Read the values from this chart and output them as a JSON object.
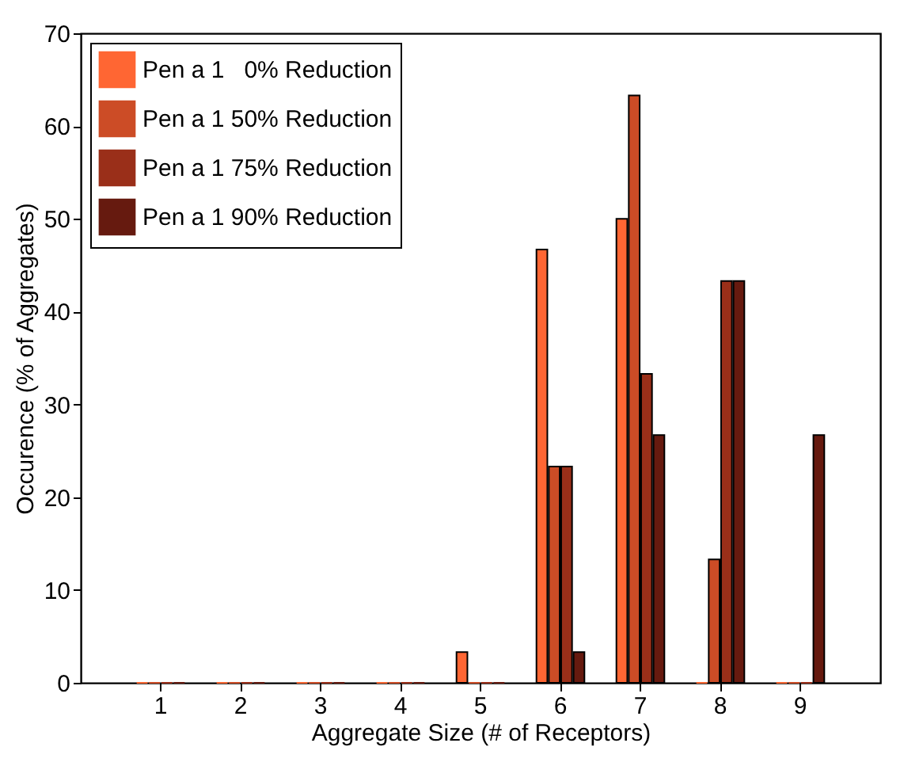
{
  "chart_data": {
    "type": "bar",
    "xlabel": "Aggregate Size (# of Receptors)",
    "ylabel": "Occurence (% of Aggregates)",
    "categories": [
      "1",
      "2",
      "3",
      "4",
      "5",
      "6",
      "7",
      "8",
      "9"
    ],
    "series": [
      {
        "name": "Pen a 1   0% Reduction",
        "color": "#ff6633",
        "values": [
          0,
          0,
          0,
          0,
          3.3,
          46.7,
          50,
          0,
          0
        ]
      },
      {
        "name": "Pen a 1 50% Reduction",
        "color": "#cc4c26",
        "values": [
          0,
          0,
          0,
          0,
          0,
          23.3,
          63.3,
          13.3,
          0
        ]
      },
      {
        "name": "Pen a 1 75% Reduction",
        "color": "#9a2f19",
        "values": [
          0,
          0,
          0,
          0,
          0,
          23.3,
          33.3,
          43.3,
          0
        ]
      },
      {
        "name": "Pen a 1 90% Reduction",
        "color": "#661a0f",
        "values": [
          0,
          0,
          0,
          0,
          0,
          3.3,
          26.7,
          43.3,
          26.7
        ]
      }
    ],
    "ylim": [
      0,
      70
    ],
    "yticks": [
      0,
      10,
      20,
      30,
      40,
      50,
      60,
      70
    ],
    "grid": false,
    "legend": "top left"
  }
}
